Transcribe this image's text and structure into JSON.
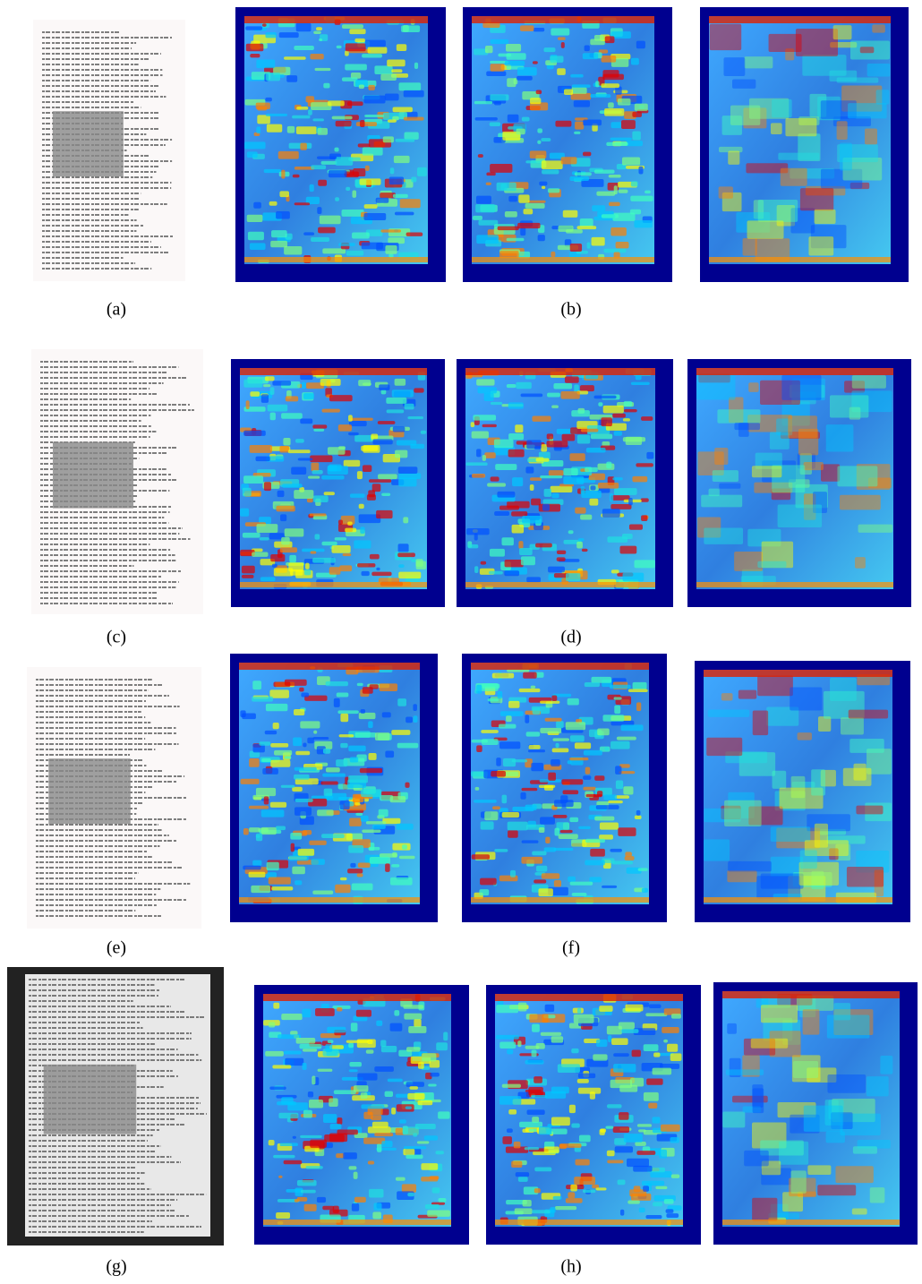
{
  "captions": [
    "(a)",
    "(b)",
    "(c)",
    "(d)",
    "(e)",
    "(f)",
    "(g)",
    "(h)"
  ]
}
